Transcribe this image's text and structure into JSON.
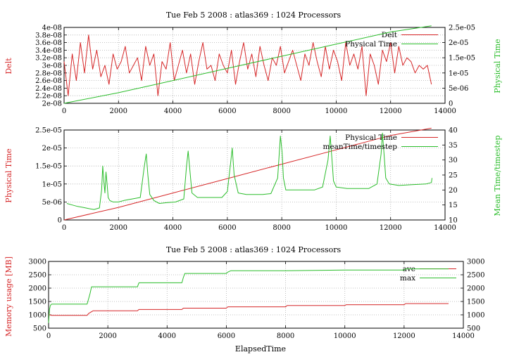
{
  "chart_data": [
    {
      "type": "line",
      "title": "Tue Feb 5 2008 : atlas369 : 1024 Processors",
      "ylabel_left": "Delt",
      "ylabel_right": "Physical Time",
      "xlim": [
        0,
        14000
      ],
      "ylim_left": [
        2e-08,
        4e-08
      ],
      "ylim_right": [
        0,
        2.5e-05
      ],
      "x_ticks": [
        "0",
        "2000",
        "4000",
        "6000",
        "8000",
        "10000",
        "12000",
        "14000"
      ],
      "y_ticks_left": [
        "2e-08",
        "2.2e-08",
        "2.4e-08",
        "2.6e-08",
        "2.8e-08",
        "3e-08",
        "3.2e-08",
        "3.4e-08",
        "3.6e-08",
        "3.8e-08",
        "4e-08"
      ],
      "y_ticks_right": [
        "0",
        "5e-06",
        "1e-05",
        "1.5e-05",
        "2e-05",
        "2.5e-05"
      ],
      "grid": true,
      "legend_position": "top-right",
      "colors": {
        "delt": "#d62728",
        "physical_time": "#2bbd2b"
      },
      "series": [
        {
          "name": "Delt",
          "axis": "left",
          "x": [
            0,
            150,
            300,
            450,
            600,
            750,
            900,
            1050,
            1200,
            1350,
            1500,
            1650,
            1800,
            1950,
            2100,
            2250,
            2400,
            2550,
            2700,
            2850,
            3000,
            3150,
            3300,
            3450,
            3600,
            3750,
            3900,
            4050,
            4200,
            4350,
            4500,
            4650,
            4800,
            4950,
            5100,
            5250,
            5400,
            5550,
            5700,
            5850,
            6000,
            6150,
            6300,
            6450,
            6600,
            6750,
            6900,
            7050,
            7200,
            7350,
            7500,
            7650,
            7800,
            7950,
            8100,
            8250,
            8400,
            8550,
            8700,
            8850,
            9000,
            9150,
            9300,
            9450,
            9600,
            9750,
            9900,
            10050,
            10200,
            10350,
            10500,
            10650,
            10800,
            10950,
            11100,
            11250,
            11400,
            11550,
            11700,
            11850,
            12000,
            12150,
            12300,
            12450,
            12600,
            12750,
            12900,
            13050,
            13200,
            13350,
            13500
          ],
          "y": [
            3.1e-08,
            2.2e-08,
            3.3e-08,
            2.6e-08,
            3.6e-08,
            2.8e-08,
            3.8e-08,
            2.9e-08,
            3.4e-08,
            2.7e-08,
            3e-08,
            2.5e-08,
            3.3e-08,
            2.9e-08,
            3.1e-08,
            3.5e-08,
            2.8e-08,
            3e-08,
            3.2e-08,
            2.6e-08,
            3.5e-08,
            3e-08,
            3.3e-08,
            2.2e-08,
            3.1e-08,
            2.9e-08,
            3.6e-08,
            2.6e-08,
            3e-08,
            3.4e-08,
            2.8e-08,
            3.3e-08,
            2.5e-08,
            3.1e-08,
            3.6e-08,
            2.9e-08,
            3e-08,
            2.6e-08,
            3.3e-08,
            3e-08,
            2.8e-08,
            3.4e-08,
            2.5e-08,
            3.1e-08,
            3.6e-08,
            2.9e-08,
            3.3e-08,
            2.7e-08,
            3.5e-08,
            3e-08,
            2.6e-08,
            3.2e-08,
            3e-08,
            3.5e-08,
            2.8e-08,
            3.1e-08,
            3.4e-08,
            3e-08,
            2.6e-08,
            3.3e-08,
            3e-08,
            3.6e-08,
            3.1e-08,
            2.7e-08,
            3.5e-08,
            2.9e-08,
            3.4e-08,
            3.1e-08,
            2.6e-08,
            3.6e-08,
            3e-08,
            3.3e-08,
            2.9e-08,
            3.5e-08,
            2.2e-08,
            3.3e-08,
            3e-08,
            2.5e-08,
            3.4e-08,
            3.1e-08,
            3.6e-08,
            2.8e-08,
            3.5e-08,
            3e-08,
            3.2e-08,
            3.1e-08,
            2.8e-08,
            3e-08,
            2.9e-08,
            3e-08,
            2.5e-08
          ]
        },
        {
          "name": "Physical Time",
          "axis": "right",
          "x": [
            0,
            2000,
            4000,
            6000,
            8000,
            10000,
            12000,
            13500
          ],
          "y": [
            0,
            3.5e-06,
            7.5e-06,
            1.15e-05,
            1.55e-05,
            1.95e-05,
            2.35e-05,
            2.55e-05
          ]
        }
      ]
    },
    {
      "type": "line",
      "ylabel_left": "Physical Time",
      "ylabel_right": "Mean Time/timestep",
      "xlim": [
        0,
        14000
      ],
      "ylim_left": [
        0,
        2.5e-05
      ],
      "ylim_right": [
        10,
        40
      ],
      "x_ticks": [
        "0",
        "2000",
        "4000",
        "6000",
        "8000",
        "10000",
        "12000",
        "14000"
      ],
      "y_ticks_left": [
        "0",
        "5e-06",
        "1e-05",
        "1.5e-05",
        "2e-05",
        "2.5e-05"
      ],
      "y_ticks_right": [
        "10",
        "15",
        "20",
        "25",
        "30",
        "35",
        "40"
      ],
      "grid": true,
      "legend_position": "top-right",
      "colors": {
        "physical_time": "#d62728",
        "mean_time": "#2bbd2b"
      },
      "series": [
        {
          "name": "Physical Time",
          "axis": "left",
          "x": [
            0,
            2000,
            4000,
            6000,
            8000,
            10000,
            12000,
            13500
          ],
          "y": [
            0,
            3.5e-06,
            7.5e-06,
            1.15e-05,
            1.55e-05,
            1.95e-05,
            2.35e-05,
            2.55e-05
          ]
        },
        {
          "name": "meanTime/timestep",
          "axis": "right",
          "x": [
            100,
            300,
            500,
            700,
            900,
            1100,
            1300,
            1380,
            1420,
            1460,
            1500,
            1540,
            1580,
            1620,
            1680,
            1800,
            2000,
            2200,
            2500,
            2800,
            2950,
            3020,
            3080,
            3150,
            3300,
            3500,
            3800,
            4100,
            4400,
            4500,
            4560,
            4620,
            4700,
            4900,
            5200,
            5500,
            5800,
            6000,
            6120,
            6180,
            6250,
            6400,
            6700,
            7000,
            7300,
            7600,
            7850,
            7950,
            8010,
            8060,
            8150,
            8400,
            8800,
            9200,
            9500,
            9700,
            9780,
            9840,
            9900,
            10000,
            10400,
            10800,
            11200,
            11500,
            11650,
            11700,
            11760,
            11820,
            11950,
            12300,
            12800,
            13300,
            13500,
            13520
          ],
          "y": [
            15.5,
            15.0,
            14.5,
            14.2,
            13.8,
            13.5,
            14.0,
            20.0,
            28.0,
            23.0,
            19.0,
            26.0,
            22.0,
            17.5,
            16.5,
            16.0,
            16.0,
            16.5,
            17.0,
            17.5,
            28.0,
            32.0,
            25.0,
            18.5,
            16.5,
            15.5,
            15.8,
            16.0,
            17.0,
            28.0,
            33.0,
            27.0,
            19.0,
            17.5,
            17.5,
            17.5,
            17.5,
            19.5,
            29.0,
            34.0,
            25.0,
            19.0,
            18.5,
            18.5,
            18.5,
            18.8,
            24.0,
            38.0,
            33.0,
            24.0,
            20.0,
            20.0,
            20.0,
            20.0,
            21.0,
            30.0,
            38.0,
            31.0,
            23.0,
            21.0,
            20.5,
            20.5,
            20.5,
            22.0,
            32.0,
            39.0,
            32.0,
            24.0,
            22.0,
            21.5,
            21.8,
            22.0,
            22.5,
            24.0
          ]
        }
      ]
    },
    {
      "type": "line",
      "title": "Tue Feb 5 2008 : atlas369 : 1024 Processors",
      "xlabel": "ElapsedTime",
      "ylabel_left": "Memory usage [MB]",
      "xlim": [
        0,
        14000
      ],
      "ylim_left": [
        500,
        3000
      ],
      "ylim_right": [
        500,
        3000
      ],
      "x_ticks": [
        "0",
        "2000",
        "4000",
        "6000",
        "8000",
        "10000",
        "12000",
        "14000"
      ],
      "y_ticks_left": [
        "500",
        "1000",
        "1500",
        "2000",
        "2500",
        "3000"
      ],
      "y_ticks_right": [
        "500",
        "1000",
        "1500",
        "2000",
        "2500",
        "3000"
      ],
      "grid": true,
      "legend_position": "top-right",
      "colors": {
        "ave": "#d62728",
        "max": "#2bbd2b"
      },
      "series": [
        {
          "name": "ave",
          "x": [
            0,
            50,
            100,
            1300,
            1350,
            1500,
            3000,
            3050,
            4500,
            4550,
            6000,
            6050,
            8000,
            8050,
            10000,
            10050,
            12000,
            12050,
            13500
          ],
          "y": [
            1000,
            1000,
            980,
            980,
            1050,
            1150,
            1150,
            1200,
            1200,
            1250,
            1250,
            1300,
            1300,
            1350,
            1350,
            1380,
            1380,
            1420,
            1420
          ]
        },
        {
          "name": "max",
          "x": [
            0,
            30,
            60,
            100,
            1300,
            1350,
            1400,
            1450,
            3000,
            3050,
            4500,
            4550,
            4600,
            6000,
            6050,
            6150,
            8000,
            10000,
            12000,
            12050,
            13500
          ],
          "y": [
            700,
            1200,
            1350,
            1400,
            1400,
            1600,
            1800,
            2050,
            2050,
            2200,
            2200,
            2400,
            2550,
            2550,
            2600,
            2650,
            2650,
            2680,
            2680,
            2720,
            2720
          ]
        }
      ]
    }
  ]
}
